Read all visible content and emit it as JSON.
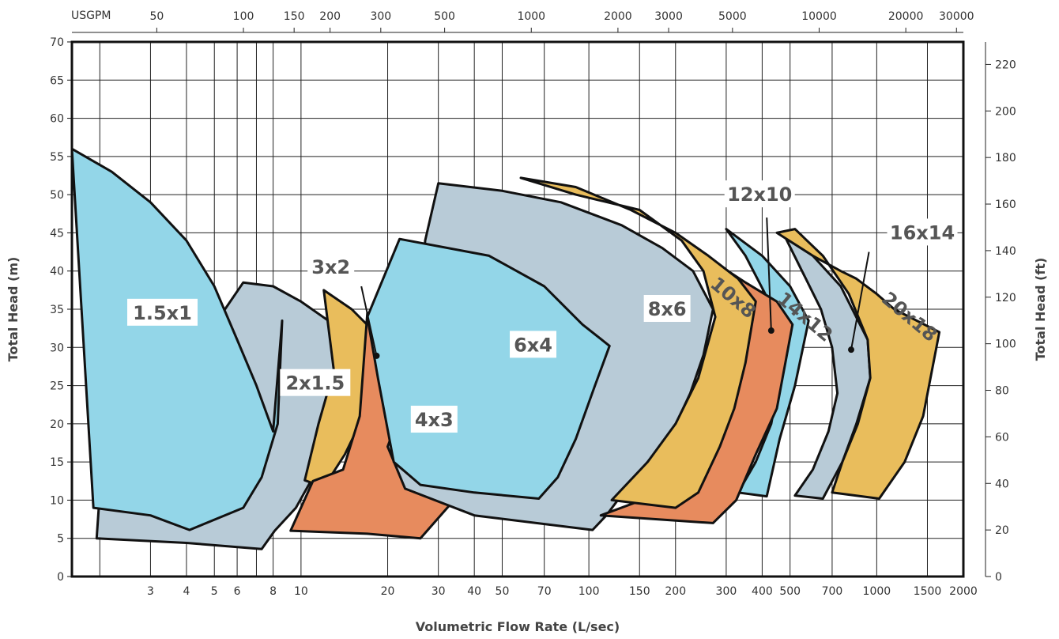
{
  "chart_data": {
    "type": "area",
    "title": "",
    "xlabel": "Volumetric Flow Rate (L/sec)",
    "ylabel": "Total Head (m)",
    "ylabel_right": "Total Head (ft)",
    "x_scale": "log",
    "xlim": [
      1.6,
      2000
    ],
    "ylim": [
      0,
      70
    ],
    "grid": true,
    "x_ticks": [
      "3",
      "4",
      "5",
      "6",
      "8",
      "10",
      "20",
      "30",
      "40",
      "50",
      "70",
      "100",
      "150",
      "200",
      "300",
      "400",
      "500",
      "700",
      "1000",
      "1500",
      "2000"
    ],
    "y_ticks": [
      "0",
      "5",
      "10",
      "15",
      "20",
      "25",
      "30",
      "35",
      "40",
      "45",
      "50",
      "55",
      "60",
      "65",
      "70"
    ],
    "top_axis": {
      "unit_label": "USGPM",
      "ticks": [
        "50",
        "100",
        "150",
        "200",
        "300",
        "500",
        "1000",
        "2000",
        "3000",
        "5000",
        "10000",
        "20000",
        "30000"
      ]
    },
    "right_axis_ticks": [
      "0",
      "20",
      "40",
      "60",
      "80",
      "100",
      "120",
      "140",
      "160",
      "180",
      "200",
      "220"
    ],
    "colors": {
      "cyan": "#93d6e8",
      "grey": "#b8cbd7",
      "yellow": "#e9bd5c",
      "orange": "#e78b5e"
    },
    "series": [
      {
        "name": "2x1.5",
        "color_key": "grey"
      },
      {
        "name": "1.5x1",
        "color_key": "cyan"
      },
      {
        "name": "3x2",
        "color_key": "yellow"
      },
      {
        "name": "4x3",
        "color_key": "orange"
      },
      {
        "name": "8x6",
        "color_key": "grey"
      },
      {
        "name": "6x4",
        "color_key": "cyan"
      },
      {
        "name": "16x14",
        "color_key": "grey"
      },
      {
        "name": "20x18",
        "color_key": "yellow"
      },
      {
        "name": "14x12",
        "color_key": "cyan"
      },
      {
        "name": "12x10",
        "color_key": "orange"
      },
      {
        "name": "10x8",
        "color_key": "yellow"
      }
    ]
  }
}
